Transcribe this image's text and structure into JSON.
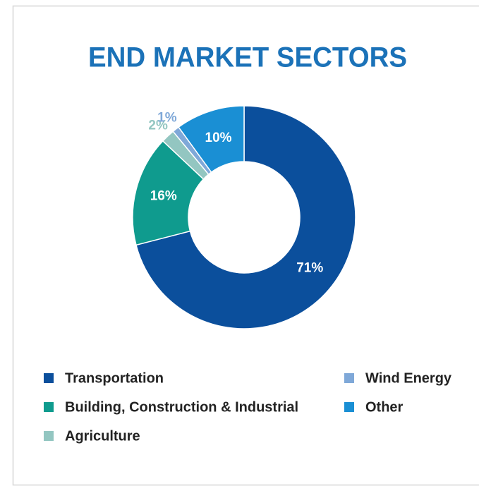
{
  "chart_data": {
    "type": "donut",
    "title": "END MARKET SECTORS",
    "categories": [
      "Transportation",
      "Building, Construction & Industrial",
      "Agriculture",
      "Wind Energy",
      "Other"
    ],
    "values": [
      71,
      16,
      2,
      1,
      10
    ],
    "value_labels": [
      "71%",
      "16%",
      "2%",
      "1%",
      "10%"
    ],
    "colors": [
      "#0b4f9c",
      "#0f9b8e",
      "#93c6c1",
      "#7fa8d8",
      "#1a8fd4"
    ],
    "legend": "bottom"
  }
}
